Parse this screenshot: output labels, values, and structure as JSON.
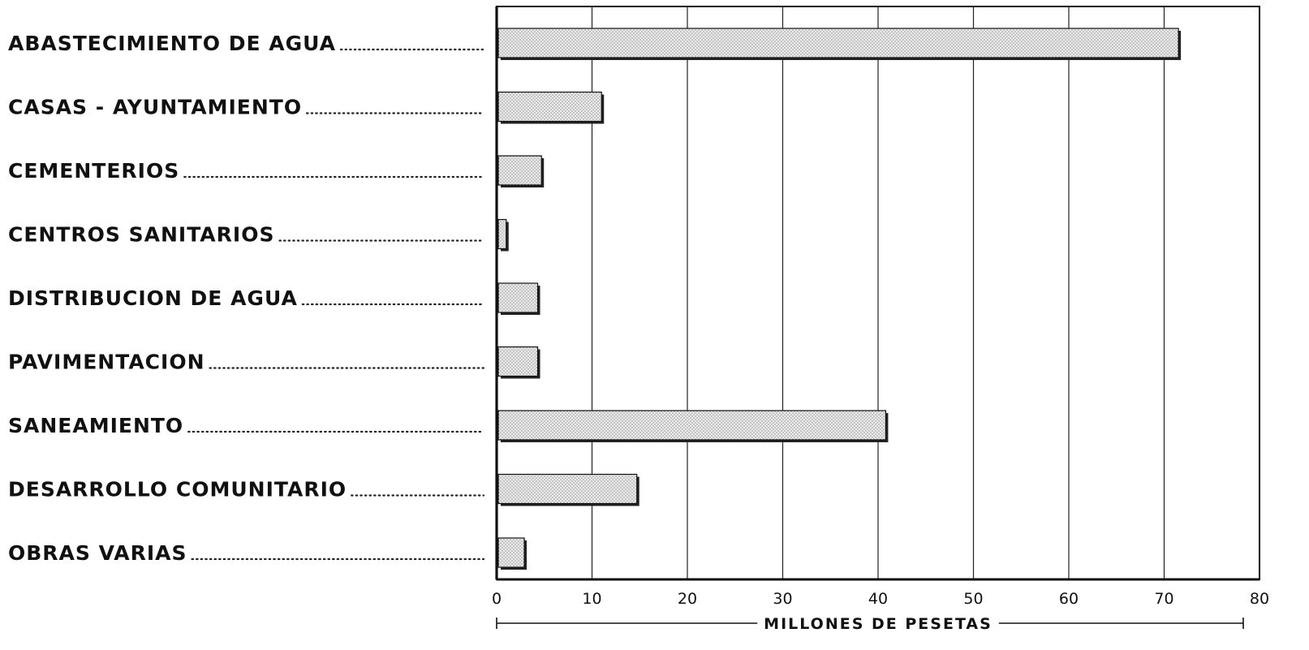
{
  "chart_data": {
    "type": "bar",
    "orientation": "horizontal",
    "categories": [
      "ABASTECIMIENTO DE AGUA",
      "CASAS - AYUNTAMIENTO",
      "CEMENTERIOS",
      "CENTROS SANITARIOS",
      "DISTRIBUCION DE AGUA",
      "PAVIMENTACION",
      "SANEAMIENTO",
      "DESARROLLO COMUNITARIO",
      "OBRAS VARIAS"
    ],
    "values": [
      71.5,
      11,
      4.7,
      1,
      4.3,
      4.3,
      40.8,
      14.7,
      2.9
    ],
    "xlabel": "MILLONES DE PESETAS",
    "ylabel": "",
    "title": "",
    "xlim": [
      0,
      80
    ],
    "xticks": [
      0,
      10,
      20,
      30,
      40,
      50,
      60,
      70,
      80
    ],
    "grid": "vertical",
    "legend": "none",
    "colors": {
      "bar_fill": "#e4e4e4",
      "bar_stroke": "#111111",
      "bar_shadow": "#222222",
      "grid": "#222222"
    }
  }
}
